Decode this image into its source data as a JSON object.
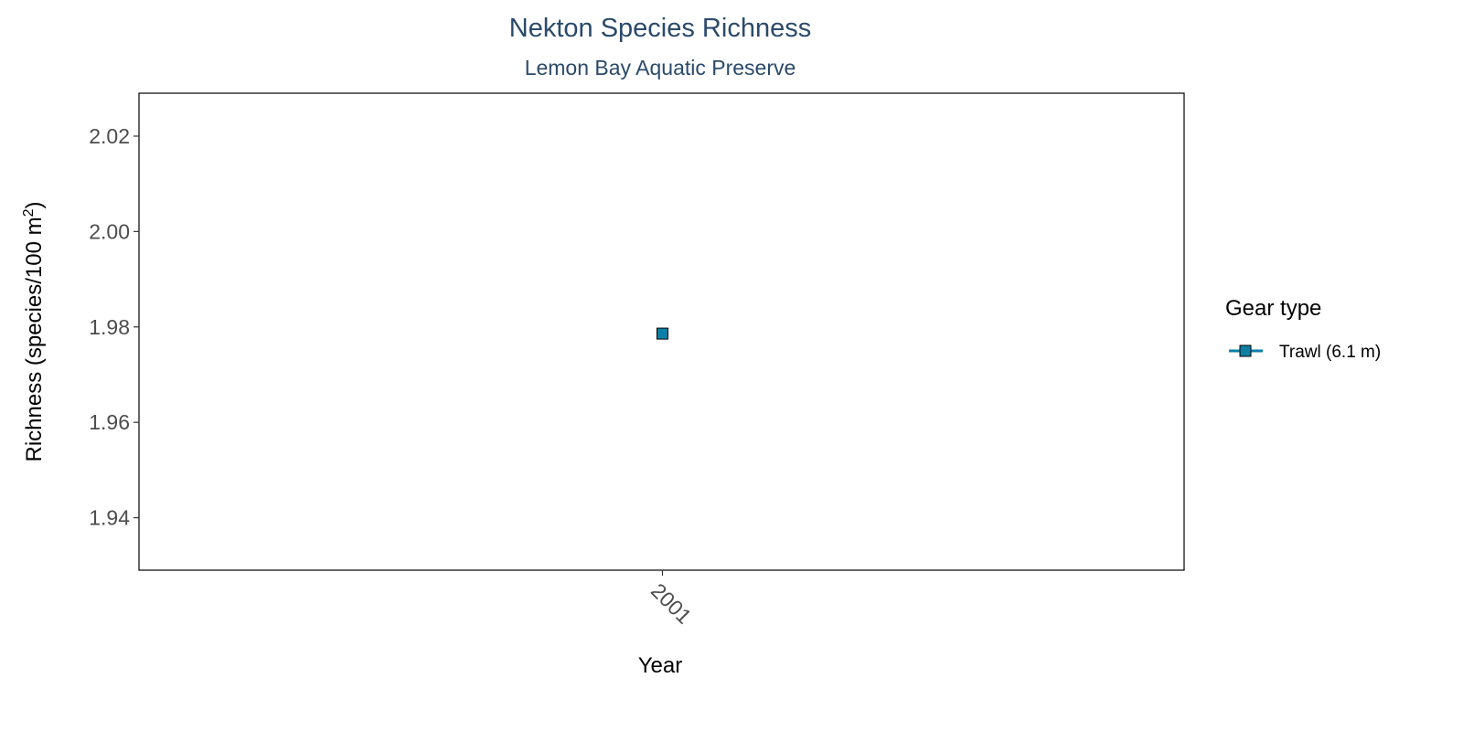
{
  "chart_data": {
    "type": "scatter",
    "title": "Nekton Species Richness",
    "subtitle": "Lemon Bay Aquatic Preserve",
    "xlabel": "Year",
    "ylabel": "Richness (species/100 m",
    "ylabel_superscript": "2",
    "ylabel_suffix": ")",
    "x": [
      2001
    ],
    "categories": [
      "2001"
    ],
    "series": [
      {
        "name": "Trawl (6.1 m)",
        "x": [
          2001
        ],
        "values": [
          1.9786
        ],
        "color": "#0b7fa6",
        "marker": "square"
      }
    ],
    "ylim": [
      1.929,
      2.029
    ],
    "yticks": [
      1.94,
      1.96,
      1.98,
      2.0,
      2.02
    ],
    "ytick_labels": [
      "1.94",
      "1.96",
      "1.98",
      "2.00",
      "2.02"
    ],
    "xtick_labels": [
      "2001"
    ],
    "xtick_rotation": "-45",
    "grid": false,
    "legend": {
      "title": "Gear type",
      "position": "right",
      "entries": [
        "Trawl (6.1 m)"
      ]
    }
  }
}
